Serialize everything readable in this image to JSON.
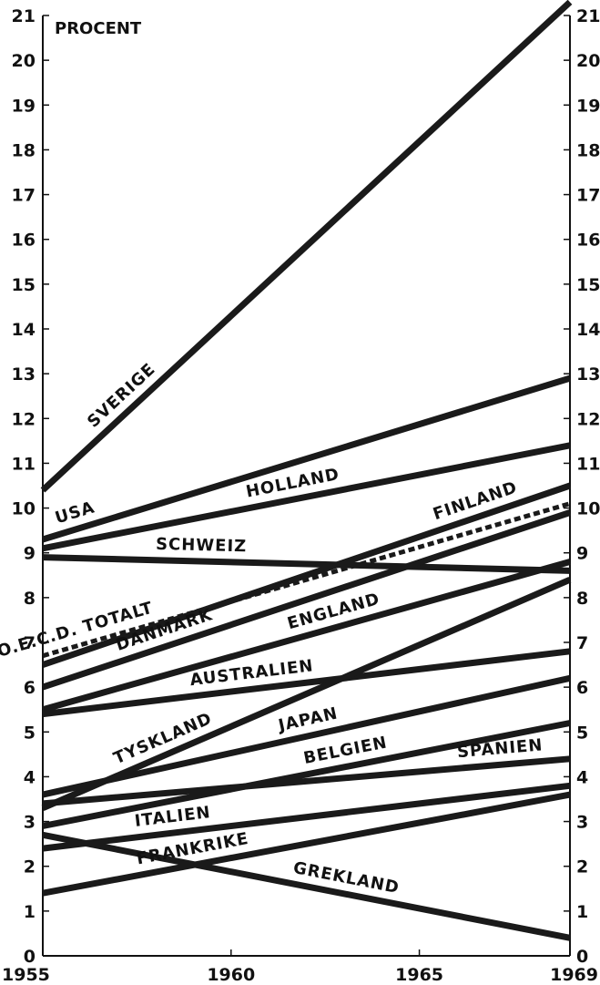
{
  "chart_data": {
    "type": "line",
    "ylabel": "PROCENT",
    "xlim": [
      1955,
      1969
    ],
    "ylim": [
      0,
      21
    ],
    "x_ticks": [
      "1955",
      "1960",
      "1965",
      "1969"
    ],
    "y_ticks": [
      "0",
      "1",
      "2",
      "3",
      "4",
      "5",
      "6",
      "7",
      "8",
      "9",
      "10",
      "11",
      "12",
      "13",
      "14",
      "15",
      "16",
      "17",
      "18",
      "19",
      "20",
      "21"
    ],
    "grid": false,
    "series": [
      {
        "name": "SVERIGE",
        "x": [
          1955,
          1969
        ],
        "values": [
          10.4,
          21.3
        ],
        "dashed": false
      },
      {
        "name": "USA",
        "x": [
          1955,
          1969
        ],
        "values": [
          9.3,
          12.9
        ],
        "dashed": false
      },
      {
        "name": "HOLLAND",
        "x": [
          1955,
          1969
        ],
        "values": [
          9.1,
          11.4
        ],
        "dashed": false
      },
      {
        "name": "FINLAND",
        "x": [
          1955,
          1969
        ],
        "values": [
          6.5,
          10.5
        ],
        "dashed": false
      },
      {
        "name": "O.E.C.D. TOTALT",
        "x": [
          1955,
          1969
        ],
        "values": [
          6.7,
          10.1
        ],
        "dashed": true
      },
      {
        "name": "SCHWEIZ",
        "x": [
          1955,
          1969
        ],
        "values": [
          8.9,
          8.6
        ],
        "dashed": false
      },
      {
        "name": "ENGLAND",
        "x": [
          1955,
          1969
        ],
        "values": [
          5.5,
          8.8
        ],
        "dashed": false
      },
      {
        "name": "DANMARK",
        "x": [
          1955,
          1969
        ],
        "values": [
          6.0,
          9.9
        ],
        "dashed": false
      },
      {
        "name": "AUSTRALIEN",
        "x": [
          1955,
          1969
        ],
        "values": [
          5.4,
          6.8
        ],
        "dashed": false
      },
      {
        "name": "TYSKLAND",
        "x": [
          1955,
          1969
        ],
        "values": [
          3.3,
          8.4
        ],
        "dashed": false
      },
      {
        "name": "JAPAN",
        "x": [
          1955,
          1969
        ],
        "values": [
          3.6,
          6.2
        ],
        "dashed": false
      },
      {
        "name": "BELGIEN",
        "x": [
          1955,
          1969
        ],
        "values": [
          2.9,
          5.2
        ],
        "dashed": false
      },
      {
        "name": "SPANIEN",
        "x": [
          1955,
          1969
        ],
        "values": [
          3.4,
          4.4
        ],
        "dashed": false
      },
      {
        "name": "ITALIEN",
        "x": [
          1955,
          1969
        ],
        "values": [
          2.4,
          3.8
        ],
        "dashed": false
      },
      {
        "name": "FRANKRIKE",
        "x": [
          1955,
          1969
        ],
        "values": [
          1.4,
          3.6
        ],
        "dashed": false
      },
      {
        "name": "GREKLAND",
        "x": [
          1955,
          1969
        ],
        "values": [
          2.7,
          0.4
        ],
        "dashed": false
      }
    ]
  }
}
